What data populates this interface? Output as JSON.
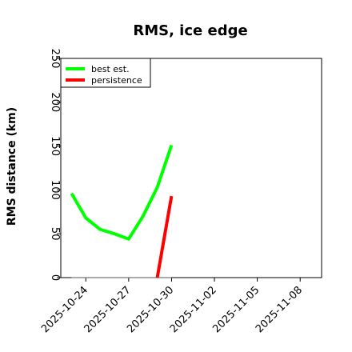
{
  "chart_data": {
    "type": "line",
    "title": "RMS, ice edge",
    "xlabel": "",
    "ylabel": "RMS distance (km)",
    "ylim": [
      0,
      250
    ],
    "xlim": [
      "2025-10-22T06:00",
      "2025-11-09T12:00"
    ],
    "yticks": [
      0,
      50,
      100,
      150,
      200,
      250
    ],
    "xticks": [
      "2025-10-24",
      "2025-10-27",
      "2025-10-30",
      "2025-11-02",
      "2025-11-05",
      "2025-11-08"
    ],
    "legend": {
      "position": "top-left"
    },
    "grid": false,
    "series": [
      {
        "name": "best est.",
        "color": "#00ff00",
        "points": [
          {
            "x": "2025-10-23T00:00",
            "y": 96
          },
          {
            "x": "2025-10-24T00:00",
            "y": 68
          },
          {
            "x": "2025-10-25T00:00",
            "y": 55
          },
          {
            "x": "2025-10-26T00:00",
            "y": 50
          },
          {
            "x": "2025-10-27T00:00",
            "y": 44
          },
          {
            "x": "2025-10-28T00:00",
            "y": 70
          },
          {
            "x": "2025-10-29T00:00",
            "y": 103
          },
          {
            "x": "2025-10-30T00:00",
            "y": 151
          }
        ]
      },
      {
        "name": "persistence",
        "color": "#ff0000",
        "points": [
          {
            "x": "2025-10-29T00:00",
            "y": 0
          },
          {
            "x": "2025-10-30T00:00",
            "y": 93
          }
        ]
      },
      {
        "name": "",
        "color": "#777777",
        "points": [
          {
            "x": "2025-10-23T00:00",
            "y": 0
          },
          {
            "x": "2025-10-30T00:00",
            "y": 0
          }
        ]
      }
    ]
  }
}
